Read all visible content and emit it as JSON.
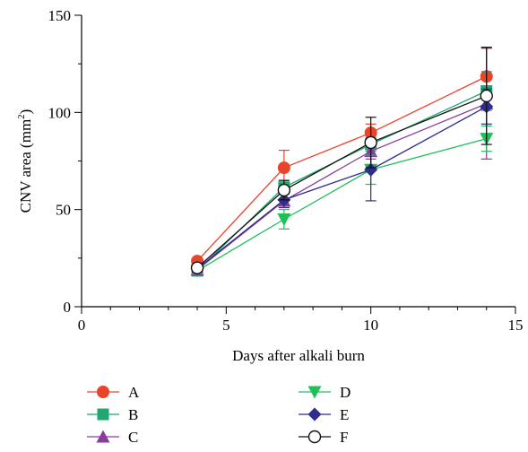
{
  "chart_data": {
    "type": "line",
    "title": "",
    "xlabel": "Days after alkali burn",
    "ylabel_main": "CNV area (mm",
    "ylabel_sup": "2",
    "ylabel_close": ")",
    "xlim": [
      0,
      15
    ],
    "ylim": [
      0,
      150
    ],
    "x_ticks": [
      0,
      5,
      10,
      15
    ],
    "y_ticks": [
      0,
      50,
      100,
      150
    ],
    "grid": false,
    "legend_position": "bottom",
    "x": [
      4,
      7,
      10,
      14
    ],
    "series": [
      {
        "name": "A",
        "values": [
          23.5,
          71.5,
          89.5,
          118.5
        ],
        "errors": [
          1.5,
          9.0,
          4.5,
          15.0
        ],
        "color": "#e8442a",
        "marker": "circle-filled"
      },
      {
        "name": "B",
        "values": [
          18.5,
          61.5,
          83.5,
          111.0
        ],
        "errors": [
          1.5,
          3.5,
          3.5,
          10.0
        ],
        "color": "#1fa870",
        "marker": "square-filled"
      },
      {
        "name": "C",
        "values": [
          19.0,
          54.5,
          80.0,
          104.5
        ],
        "errors": [
          1.5,
          3.5,
          4.0,
          28.5
        ],
        "color": "#8a3d9a",
        "marker": "triangle-up-filled"
      },
      {
        "name": "D",
        "values": [
          18.5,
          45.0,
          70.5,
          86.5
        ],
        "errors": [
          1.5,
          5.0,
          7.5,
          6.5
        ],
        "color": "#1fbf5a",
        "marker": "triangle-down-filled"
      },
      {
        "name": "E",
        "values": [
          19.5,
          55.0,
          70.5,
          103.0
        ],
        "errors": [
          1.5,
          4.0,
          16.0,
          9.0
        ],
        "color": "#2e2c8c",
        "marker": "diamond-filled"
      },
      {
        "name": "F",
        "values": [
          20.0,
          60.0,
          84.5,
          108.5
        ],
        "errors": [
          1.5,
          5.0,
          13.0,
          25.0
        ],
        "color": "#111111",
        "marker": "circle-open"
      }
    ]
  }
}
